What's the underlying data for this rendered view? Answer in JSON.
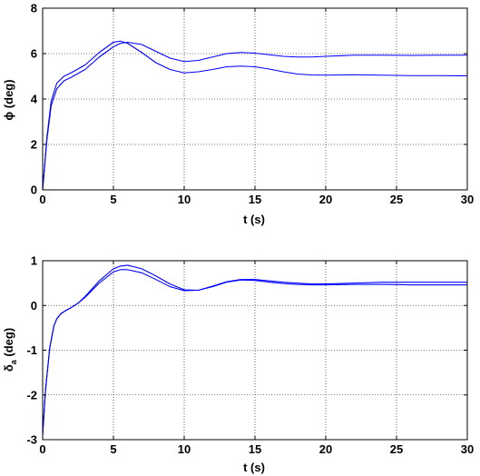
{
  "chart_data": [
    {
      "type": "line",
      "xlabel": "t (s)",
      "ylabel": "ϕ (deg)",
      "xlim": [
        0,
        30
      ],
      "ylim": [
        0,
        8
      ],
      "xticks": [
        0,
        5,
        10,
        15,
        20,
        25,
        30
      ],
      "yticks": [
        0,
        2,
        4,
        6,
        8
      ],
      "xtick_labels": [
        "0",
        "5",
        "10",
        "15",
        "20",
        "25",
        "30"
      ],
      "ytick_labels": [
        "0",
        "2",
        "4",
        "6",
        "8"
      ],
      "grid": true,
      "line_color": "#0000ff",
      "series": [
        {
          "x": [
            0,
            0.3,
            0.6,
            1.0,
            1.5,
            2.0,
            3.0,
            4.0,
            5.0,
            5.5,
            6.0,
            7.0,
            8.0,
            9.0,
            10.0,
            11.0,
            12.0,
            13.0,
            14.0,
            15.0,
            16.0,
            17.0,
            18.0,
            19.0,
            20.0,
            22.0,
            24.0,
            26.0,
            28.0,
            30.0
          ],
          "y": [
            0,
            2.3,
            3.9,
            4.7,
            5.0,
            5.15,
            5.5,
            6.05,
            6.5,
            6.55,
            6.45,
            6.05,
            5.6,
            5.3,
            5.15,
            5.2,
            5.3,
            5.42,
            5.45,
            5.42,
            5.32,
            5.2,
            5.1,
            5.06,
            5.05,
            5.07,
            5.05,
            5.03,
            5.03,
            5.02
          ]
        },
        {
          "x": [
            0,
            0.3,
            0.6,
            1.0,
            1.5,
            2.0,
            3.0,
            4.0,
            5.0,
            5.5,
            6.0,
            7.0,
            8.0,
            9.0,
            10.0,
            11.0,
            12.0,
            13.0,
            14.0,
            15.0,
            16.0,
            17.0,
            18.0,
            19.0,
            20.0,
            22.0,
            24.0,
            26.0,
            28.0,
            30.0
          ],
          "y": [
            0,
            2.2,
            3.7,
            4.45,
            4.8,
            4.95,
            5.3,
            5.85,
            6.3,
            6.45,
            6.5,
            6.4,
            6.1,
            5.8,
            5.65,
            5.7,
            5.85,
            6.0,
            6.05,
            6.02,
            5.95,
            5.88,
            5.85,
            5.85,
            5.88,
            5.93,
            5.93,
            5.92,
            5.93,
            5.93
          ]
        }
      ]
    },
    {
      "type": "line",
      "xlabel": "t (s)",
      "ylabel_main": "δ",
      "ylabel_sub": "a",
      "ylabel_tail": " (deg)",
      "xlim": [
        0,
        30
      ],
      "ylim": [
        -3,
        1
      ],
      "xticks": [
        0,
        5,
        10,
        15,
        20,
        25,
        30
      ],
      "yticks": [
        -3,
        -2,
        -1,
        0,
        1
      ],
      "xtick_labels": [
        "0",
        "5",
        "10",
        "15",
        "20",
        "25",
        "30"
      ],
      "ytick_labels": [
        "-3",
        "-2",
        "-1",
        "0",
        "1"
      ],
      "grid": true,
      "line_color": "#0000ff",
      "series": [
        {
          "x": [
            0,
            0.2,
            0.5,
            0.8,
            1.0,
            1.3,
            1.6,
            2.0,
            2.5,
            3.0,
            4.0,
            5.0,
            5.5,
            6.0,
            7.0,
            8.0,
            9.0,
            10.0,
            11.0,
            12.0,
            13.0,
            14.0,
            15.0,
            16.0,
            17.0,
            18.0,
            19.0,
            20.0,
            22.0,
            24.0,
            26.0,
            28.0,
            30.0
          ],
          "y": [
            -2.9,
            -1.9,
            -0.95,
            -0.45,
            -0.3,
            -0.18,
            -0.12,
            -0.05,
            0.05,
            0.2,
            0.55,
            0.82,
            0.88,
            0.9,
            0.82,
            0.66,
            0.48,
            0.35,
            0.34,
            0.42,
            0.52,
            0.57,
            0.56,
            0.52,
            0.49,
            0.47,
            0.46,
            0.46,
            0.47,
            0.47,
            0.46,
            0.46,
            0.46
          ]
        },
        {
          "x": [
            0,
            0.2,
            0.5,
            0.8,
            1.0,
            1.3,
            1.6,
            2.0,
            2.5,
            3.0,
            4.0,
            5.0,
            5.5,
            6.0,
            7.0,
            8.0,
            9.0,
            10.0,
            11.0,
            12.0,
            13.0,
            14.0,
            15.0,
            16.0,
            17.0,
            18.0,
            19.0,
            20.0,
            22.0,
            24.0,
            26.0,
            28.0,
            30.0
          ],
          "y": [
            -2.9,
            -1.9,
            -0.95,
            -0.45,
            -0.3,
            -0.18,
            -0.12,
            -0.05,
            0.05,
            0.18,
            0.5,
            0.75,
            0.8,
            0.8,
            0.73,
            0.58,
            0.42,
            0.33,
            0.34,
            0.43,
            0.53,
            0.58,
            0.58,
            0.55,
            0.52,
            0.5,
            0.48,
            0.48,
            0.5,
            0.52,
            0.52,
            0.52,
            0.52
          ]
        }
      ]
    }
  ]
}
